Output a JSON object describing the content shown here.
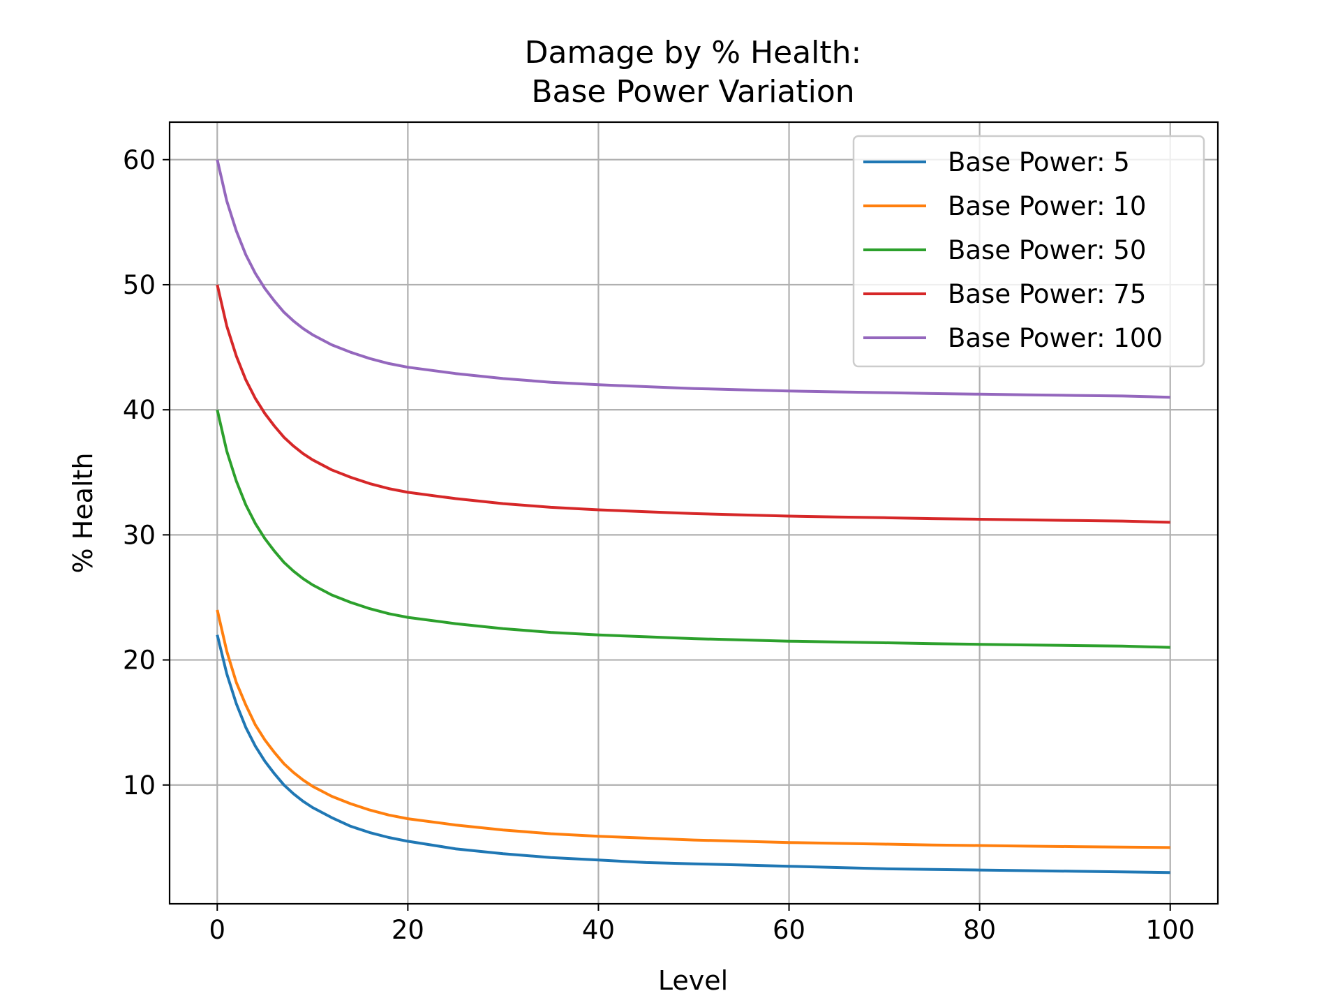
{
  "chart_data": {
    "type": "line",
    "title_line1": "Damage by % Health:",
    "title_line2": "Base Power Variation",
    "xlabel": "Level",
    "ylabel": "% Health",
    "xlim": [
      -5,
      105
    ],
    "ylim": [
      0.5,
      63
    ],
    "xticks": [
      0,
      20,
      40,
      60,
      80,
      100
    ],
    "yticks": [
      10,
      20,
      30,
      40,
      50,
      60
    ],
    "grid": true,
    "legend_position": "top-right",
    "x": [
      0,
      1,
      2,
      3,
      4,
      5,
      6,
      7,
      8,
      9,
      10,
      12,
      14,
      16,
      18,
      20,
      25,
      30,
      35,
      40,
      45,
      50,
      55,
      60,
      65,
      70,
      75,
      80,
      85,
      90,
      95,
      100
    ],
    "series": [
      {
        "name": "Base Power: 5",
        "color": "#1f77b4",
        "values": [
          22.0,
          18.9,
          16.5,
          14.6,
          13.1,
          11.9,
          10.9,
          10.0,
          9.3,
          8.7,
          8.2,
          7.4,
          6.7,
          6.2,
          5.8,
          5.5,
          4.9,
          4.5,
          4.2,
          4.0,
          3.8,
          3.7,
          3.6,
          3.5,
          3.4,
          3.3,
          3.25,
          3.2,
          3.15,
          3.1,
          3.05,
          3.0
        ]
      },
      {
        "name": "Base Power: 10",
        "color": "#ff7f0e",
        "values": [
          24.0,
          20.7,
          18.2,
          16.4,
          14.8,
          13.6,
          12.6,
          11.7,
          11.0,
          10.4,
          9.9,
          9.1,
          8.5,
          8.0,
          7.6,
          7.3,
          6.8,
          6.4,
          6.1,
          5.9,
          5.75,
          5.6,
          5.5,
          5.4,
          5.33,
          5.27,
          5.2,
          5.16,
          5.11,
          5.07,
          5.03,
          5.0
        ]
      },
      {
        "name": "Base Power: 50",
        "color": "#2ca02c",
        "values": [
          40.0,
          36.7,
          34.3,
          32.4,
          30.9,
          29.7,
          28.7,
          27.8,
          27.1,
          26.5,
          26.0,
          25.2,
          24.6,
          24.1,
          23.7,
          23.4,
          22.9,
          22.5,
          22.2,
          22.0,
          21.85,
          21.7,
          21.6,
          21.5,
          21.43,
          21.37,
          21.3,
          21.25,
          21.2,
          21.15,
          21.1,
          21.0
        ]
      },
      {
        "name": "Base Power: 75",
        "color": "#d62728",
        "values": [
          50.0,
          46.7,
          44.3,
          42.4,
          40.9,
          39.7,
          38.7,
          37.8,
          37.1,
          36.5,
          36.0,
          35.2,
          34.6,
          34.1,
          33.7,
          33.4,
          32.9,
          32.5,
          32.2,
          32.0,
          31.85,
          31.7,
          31.6,
          31.5,
          31.43,
          31.37,
          31.3,
          31.25,
          31.2,
          31.15,
          31.1,
          31.0
        ]
      },
      {
        "name": "Base Power: 100",
        "color": "#9467bd",
        "values": [
          60.0,
          56.7,
          54.3,
          52.4,
          50.9,
          49.7,
          48.7,
          47.8,
          47.1,
          46.5,
          46.0,
          45.2,
          44.6,
          44.1,
          43.7,
          43.4,
          42.9,
          42.5,
          42.2,
          42.0,
          41.85,
          41.7,
          41.6,
          41.5,
          41.43,
          41.37,
          41.3,
          41.25,
          41.2,
          41.15,
          41.1,
          41.0
        ]
      }
    ]
  }
}
